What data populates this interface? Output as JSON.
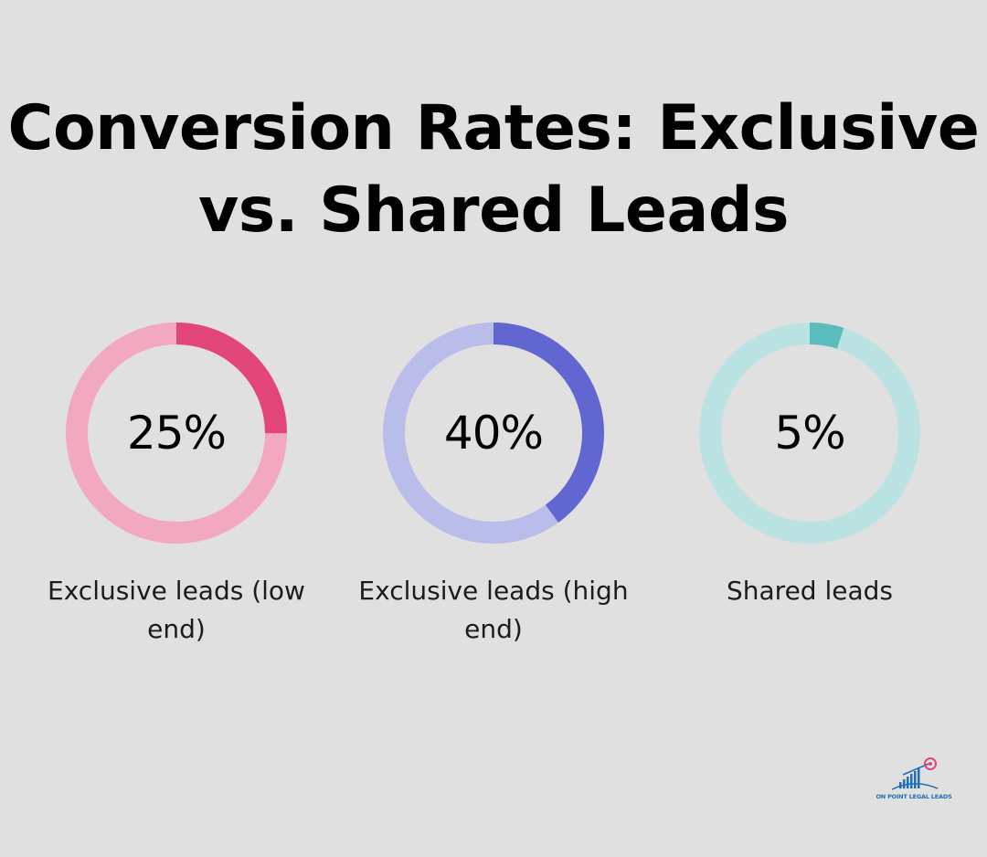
{
  "chart_data": {
    "type": "pie",
    "title_lines": [
      "Conversion Rates: Exclusive",
      "vs. Shared Leads"
    ],
    "items": [
      {
        "label": "Exclusive leads (low end)",
        "value": 25,
        "display": "25%",
        "color": "#e24578",
        "track_color": "#f2a8bf"
      },
      {
        "label": "Exclusive leads (high end)",
        "value": 40,
        "display": "40%",
        "color": "#6166d1",
        "track_color": "#babcea"
      },
      {
        "label": "Shared leads",
        "value": 5,
        "display": "5%",
        "color": "#5bbcbe",
        "track_color": "#bce3e4"
      }
    ]
  },
  "logo": {
    "text": "ON POINT LEGAL LEADS",
    "icon": "bar-chart-target-icon"
  }
}
